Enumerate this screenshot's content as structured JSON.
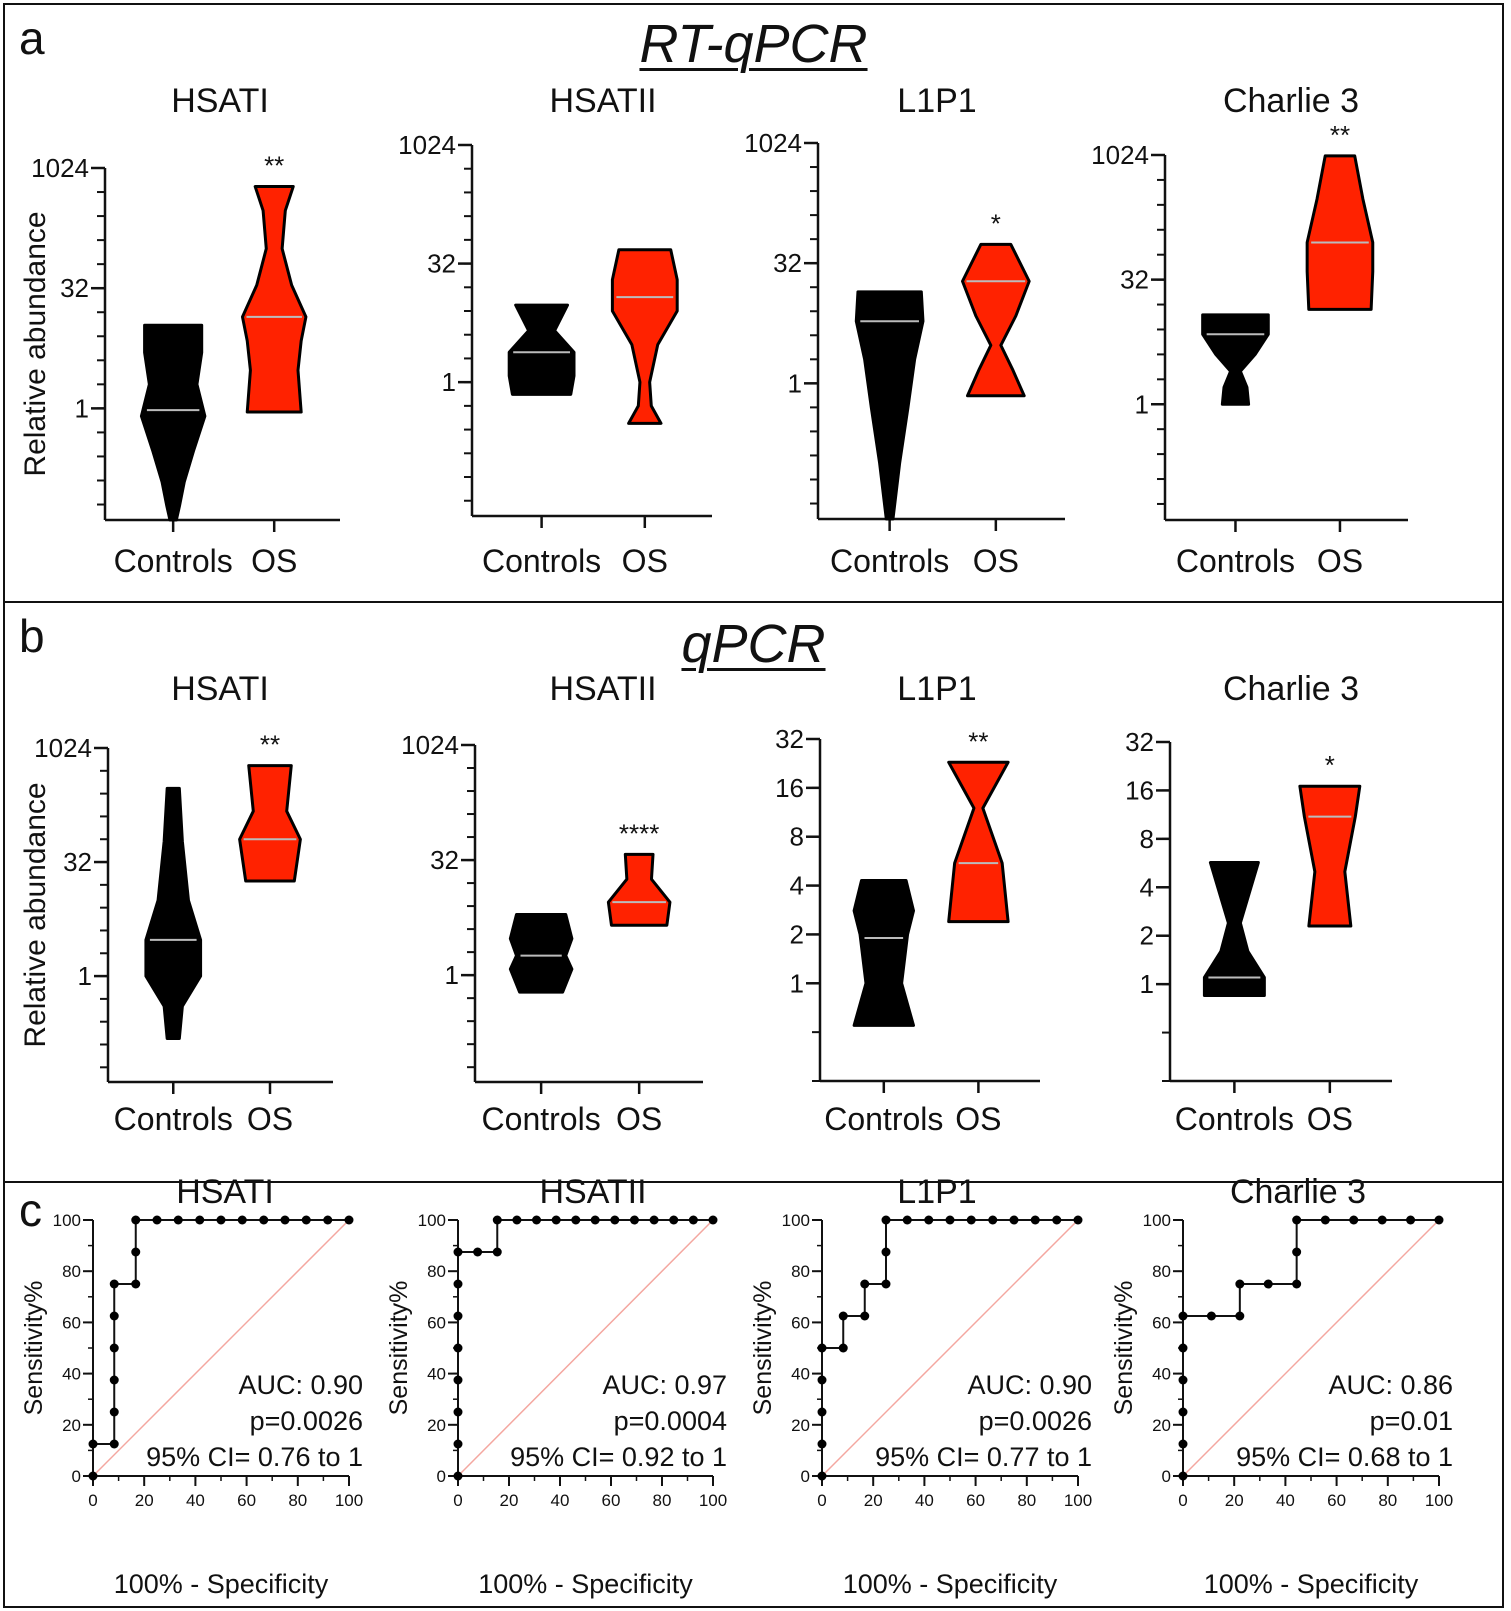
{
  "colors": {
    "controls_fill": "#000000",
    "os_fill": "#ff2200",
    "median_line": "#bbbbbb",
    "axis": "#111111",
    "diagonal": "#f4a7a0",
    "roc_line": "#111111"
  },
  "panels": {
    "a": {
      "letter": "a",
      "heading": "RT-qPCR"
    },
    "b": {
      "letter": "b",
      "heading": "qPCR"
    },
    "c": {
      "letter": "c"
    }
  },
  "chart_data": [
    {
      "id": "a1",
      "panel": "a",
      "type": "violin",
      "scale": "log2",
      "title": "HSATI",
      "ylabel": "Relative abundance",
      "ylim": [
        0.04,
        1024
      ],
      "yticks": [
        1,
        32,
        1024
      ],
      "categories": [
        "Controls",
        "OS"
      ],
      "significance": "**",
      "series": [
        {
          "name": "Controls",
          "min": 0.04,
          "max": 11,
          "median": 0.95,
          "profile": [
            [
              0.04,
              0.1
            ],
            [
              0.06,
              0.2
            ],
            [
              0.12,
              0.35
            ],
            [
              0.3,
              0.65
            ],
            [
              0.8,
              1.0
            ],
            [
              2,
              0.75
            ],
            [
              5,
              0.9
            ],
            [
              11,
              0.9
            ]
          ]
        },
        {
          "name": "OS",
          "min": 0.9,
          "max": 600,
          "median": 14,
          "profile": [
            [
              0.9,
              0.85
            ],
            [
              3,
              0.75
            ],
            [
              7,
              0.85
            ],
            [
              14,
              1.0
            ],
            [
              35,
              0.55
            ],
            [
              100,
              0.25
            ],
            [
              300,
              0.35
            ],
            [
              600,
              0.6
            ]
          ]
        }
      ]
    },
    {
      "id": "a2",
      "panel": "a",
      "type": "violin",
      "scale": "log2",
      "title": "HSATII",
      "ylabel": "",
      "ylim": [
        0.02,
        1024
      ],
      "yticks": [
        1,
        32,
        1024
      ],
      "categories": [
        "Controls",
        "OS"
      ],
      "significance": "",
      "series": [
        {
          "name": "Controls",
          "min": 0.7,
          "max": 9.5,
          "median": 2.4,
          "profile": [
            [
              0.7,
              0.9
            ],
            [
              1.2,
              1.0
            ],
            [
              2.4,
              1.0
            ],
            [
              4.5,
              0.4
            ],
            [
              9.5,
              0.8
            ]
          ]
        },
        {
          "name": "OS",
          "min": 0.3,
          "max": 48,
          "median": 12,
          "profile": [
            [
              0.3,
              0.5
            ],
            [
              0.5,
              0.2
            ],
            [
              1,
              0.15
            ],
            [
              3,
              0.4
            ],
            [
              8,
              1.0
            ],
            [
              20,
              1.0
            ],
            [
              48,
              0.8
            ]
          ]
        }
      ]
    },
    {
      "id": "a3",
      "panel": "a",
      "type": "violin",
      "scale": "log2",
      "title": "L1P1",
      "ylabel": "",
      "ylim": [
        0.02,
        1024
      ],
      "yticks": [
        1,
        32,
        1024
      ],
      "categories": [
        "Controls",
        "OS"
      ],
      "significance": "*",
      "series": [
        {
          "name": "Controls",
          "min": 0.02,
          "max": 14,
          "median": 6,
          "profile": [
            [
              0.02,
              0.1
            ],
            [
              0.1,
              0.3
            ],
            [
              0.5,
              0.55
            ],
            [
              2,
              0.75
            ],
            [
              6,
              1.0
            ],
            [
              14,
              0.95
            ]
          ]
        },
        {
          "name": "OS",
          "min": 0.7,
          "max": 55,
          "median": 19,
          "profile": [
            [
              0.7,
              0.85
            ],
            [
              1.5,
              0.5
            ],
            [
              3,
              0.15
            ],
            [
              7,
              0.6
            ],
            [
              19,
              1.0
            ],
            [
              55,
              0.45
            ]
          ]
        }
      ]
    },
    {
      "id": "a4",
      "panel": "a",
      "type": "violin",
      "scale": "log2",
      "title": "Charlie 3",
      "ylabel": "",
      "ylim": [
        0.04,
        1024
      ],
      "yticks": [
        1,
        32,
        1024
      ],
      "categories": [
        "Controls",
        "OS"
      ],
      "significance": "**",
      "series": [
        {
          "name": "Controls",
          "min": 1.0,
          "max": 12,
          "median": 7,
          "profile": [
            [
              1.0,
              0.4
            ],
            [
              1.6,
              0.35
            ],
            [
              2.5,
              0.15
            ],
            [
              4,
              0.6
            ],
            [
              7,
              1.0
            ],
            [
              12,
              1.0
            ]
          ]
        },
        {
          "name": "OS",
          "min": 14,
          "max": 1000,
          "median": 90,
          "profile": [
            [
              14,
              0.95
            ],
            [
              40,
              1.0
            ],
            [
              90,
              1.0
            ],
            [
              300,
              0.7
            ],
            [
              1000,
              0.45
            ]
          ]
        }
      ]
    },
    {
      "id": "b1",
      "panel": "b",
      "type": "violin",
      "scale": "log2",
      "title": "HSATI",
      "ylabel": "Relative abundance",
      "ylim": [
        0.04,
        1024
      ],
      "yticks": [
        1,
        32,
        1024
      ],
      "categories": [
        "Controls",
        "OS"
      ],
      "significance": "**",
      "series": [
        {
          "name": "Controls",
          "min": 0.15,
          "max": 300,
          "median": 3,
          "profile": [
            [
              0.15,
              0.2
            ],
            [
              0.4,
              0.3
            ],
            [
              1,
              0.9
            ],
            [
              3,
              0.9
            ],
            [
              10,
              0.5
            ],
            [
              60,
              0.3
            ],
            [
              300,
              0.2
            ]
          ]
        },
        {
          "name": "OS",
          "min": 18,
          "max": 600,
          "median": 64,
          "profile": [
            [
              18,
              0.8
            ],
            [
              64,
              1.0
            ],
            [
              150,
              0.55
            ],
            [
              600,
              0.7
            ]
          ]
        }
      ]
    },
    {
      "id": "b2",
      "panel": "b",
      "type": "violin",
      "scale": "log2",
      "title": "HSATII",
      "ylabel": "",
      "ylim": [
        0.04,
        1024
      ],
      "yticks": [
        1,
        32,
        1024
      ],
      "categories": [
        "Controls",
        "OS"
      ],
      "significance": "****",
      "series": [
        {
          "name": "Controls",
          "min": 0.6,
          "max": 6.2,
          "median": 1.8,
          "profile": [
            [
              0.6,
              0.7
            ],
            [
              1.2,
              1.0
            ],
            [
              1.8,
              0.8
            ],
            [
              3,
              1.0
            ],
            [
              6.2,
              0.8
            ]
          ]
        },
        {
          "name": "OS",
          "min": 4.5,
          "max": 38,
          "median": 9,
          "profile": [
            [
              4.5,
              0.9
            ],
            [
              9,
              1.0
            ],
            [
              18,
              0.4
            ],
            [
              38,
              0.45
            ]
          ]
        }
      ]
    },
    {
      "id": "b3",
      "panel": "b",
      "type": "violin",
      "scale": "log2",
      "title": "L1P1",
      "ylabel": "",
      "ylim": [
        0.25,
        32
      ],
      "yticks": [
        1,
        2,
        4,
        8,
        16,
        32
      ],
      "categories": [
        "Controls",
        "OS"
      ],
      "significance": "**",
      "series": [
        {
          "name": "Controls",
          "min": 0.55,
          "max": 4.3,
          "median": 1.9,
          "profile": [
            [
              0.55,
              1.0
            ],
            [
              1,
              0.6
            ],
            [
              2,
              0.8
            ],
            [
              2.8,
              1.0
            ],
            [
              4.3,
              0.75
            ]
          ]
        },
        {
          "name": "OS",
          "min": 2.4,
          "max": 23,
          "median": 5.5,
          "profile": [
            [
              2.4,
              1.0
            ],
            [
              5.5,
              0.8
            ],
            [
              12,
              0.15
            ],
            [
              23,
              1.0
            ]
          ]
        }
      ]
    },
    {
      "id": "b4",
      "panel": "b",
      "type": "violin",
      "scale": "log2",
      "title": "Charlie 3",
      "ylabel": "",
      "ylim": [
        0.25,
        32
      ],
      "yticks": [
        1,
        2,
        4,
        8,
        16,
        32
      ],
      "categories": [
        "Controls",
        "OS"
      ],
      "significance": "*",
      "series": [
        {
          "name": "Controls",
          "min": 0.85,
          "max": 5.7,
          "median": 1.1,
          "profile": [
            [
              0.85,
              1.0
            ],
            [
              1.1,
              1.0
            ],
            [
              1.6,
              0.45
            ],
            [
              2.4,
              0.2
            ],
            [
              5.7,
              0.8
            ]
          ]
        },
        {
          "name": "OS",
          "min": 2.3,
          "max": 17,
          "median": 11,
          "profile": [
            [
              2.3,
              0.7
            ],
            [
              5,
              0.5
            ],
            [
              11,
              0.85
            ],
            [
              17,
              1.0
            ]
          ]
        }
      ]
    },
    {
      "id": "c1",
      "panel": "c",
      "type": "line",
      "title": "HSATI",
      "xlabel": "100% - Specificity",
      "ylabel": "Sensitivity%",
      "xlim": [
        0,
        100
      ],
      "ylim": [
        0,
        100
      ],
      "xticks": [
        0,
        20,
        40,
        60,
        80,
        100
      ],
      "yticks": [
        0,
        20,
        40,
        60,
        80,
        100
      ],
      "annotations": [
        "AUC: 0.90",
        "p=0.0026",
        "95% CI= 0.76 to 1"
      ],
      "x": [
        0,
        0,
        8.3,
        8.3,
        8.3,
        8.3,
        8.3,
        8.3,
        16.7,
        16.7,
        16.7,
        25,
        33.3,
        41.7,
        50,
        58.3,
        66.7,
        75,
        83.3,
        91.7,
        100
      ],
      "y": [
        0,
        12.5,
        12.5,
        25,
        37.5,
        50,
        62.5,
        75,
        75,
        87.5,
        100,
        100,
        100,
        100,
        100,
        100,
        100,
        100,
        100,
        100,
        100
      ]
    },
    {
      "id": "c2",
      "panel": "c",
      "type": "line",
      "title": "HSATII",
      "xlabel": "100% - Specificity",
      "ylabel": "Sensitivity%",
      "xlim": [
        0,
        100
      ],
      "ylim": [
        0,
        100
      ],
      "xticks": [
        0,
        20,
        40,
        60,
        80,
        100
      ],
      "yticks": [
        0,
        20,
        40,
        60,
        80,
        100
      ],
      "annotations": [
        "AUC: 0.97",
        "p=0.0004",
        "95% CI= 0.92 to 1"
      ],
      "x": [
        0,
        0,
        0,
        0,
        0,
        0,
        0,
        0,
        7.7,
        15.4,
        15.4,
        23.1,
        30.8,
        38.5,
        46.2,
        53.8,
        61.5,
        69.2,
        76.9,
        84.6,
        92.3,
        100
      ],
      "y": [
        0,
        12.5,
        25,
        37.5,
        50,
        62.5,
        75,
        87.5,
        87.5,
        87.5,
        100,
        100,
        100,
        100,
        100,
        100,
        100,
        100,
        100,
        100,
        100,
        100
      ]
    },
    {
      "id": "c3",
      "panel": "c",
      "type": "line",
      "title": "L1P1",
      "xlabel": "100% - Specificity",
      "ylabel": "Sensitivity%",
      "xlim": [
        0,
        100
      ],
      "ylim": [
        0,
        100
      ],
      "xticks": [
        0,
        20,
        40,
        60,
        80,
        100
      ],
      "yticks": [
        0,
        20,
        40,
        60,
        80,
        100
      ],
      "annotations": [
        "AUC: 0.90",
        "p=0.0026",
        "95% CI= 0.77 to 1"
      ],
      "x": [
        0,
        0,
        0,
        0,
        0,
        8.3,
        8.3,
        16.7,
        16.7,
        25,
        25,
        25,
        33.3,
        41.7,
        50,
        58.3,
        66.7,
        75,
        83.3,
        91.7,
        100
      ],
      "y": [
        0,
        12.5,
        25,
        37.5,
        50,
        50,
        62.5,
        62.5,
        75,
        75,
        87.5,
        100,
        100,
        100,
        100,
        100,
        100,
        100,
        100,
        100,
        100
      ]
    },
    {
      "id": "c4",
      "panel": "c",
      "type": "line",
      "title": "Charlie 3",
      "xlabel": "100% - Specificity",
      "ylabel": "Sensitivity%",
      "xlim": [
        0,
        100
      ],
      "ylim": [
        0,
        100
      ],
      "xticks": [
        0,
        20,
        40,
        60,
        80,
        100
      ],
      "yticks": [
        0,
        20,
        40,
        60,
        80,
        100
      ],
      "annotations": [
        "AUC: 0.86",
        "p=0.01",
        "95% CI= 0.68 to 1"
      ],
      "x": [
        0,
        0,
        0,
        0,
        0,
        0,
        11.1,
        22.2,
        22.2,
        33.3,
        44.4,
        44.4,
        44.4,
        55.6,
        66.7,
        77.8,
        88.9,
        100
      ],
      "y": [
        0,
        12.5,
        25,
        37.5,
        50,
        62.5,
        62.5,
        62.5,
        75,
        75,
        75,
        87.5,
        100,
        100,
        100,
        100,
        100,
        100
      ]
    }
  ]
}
